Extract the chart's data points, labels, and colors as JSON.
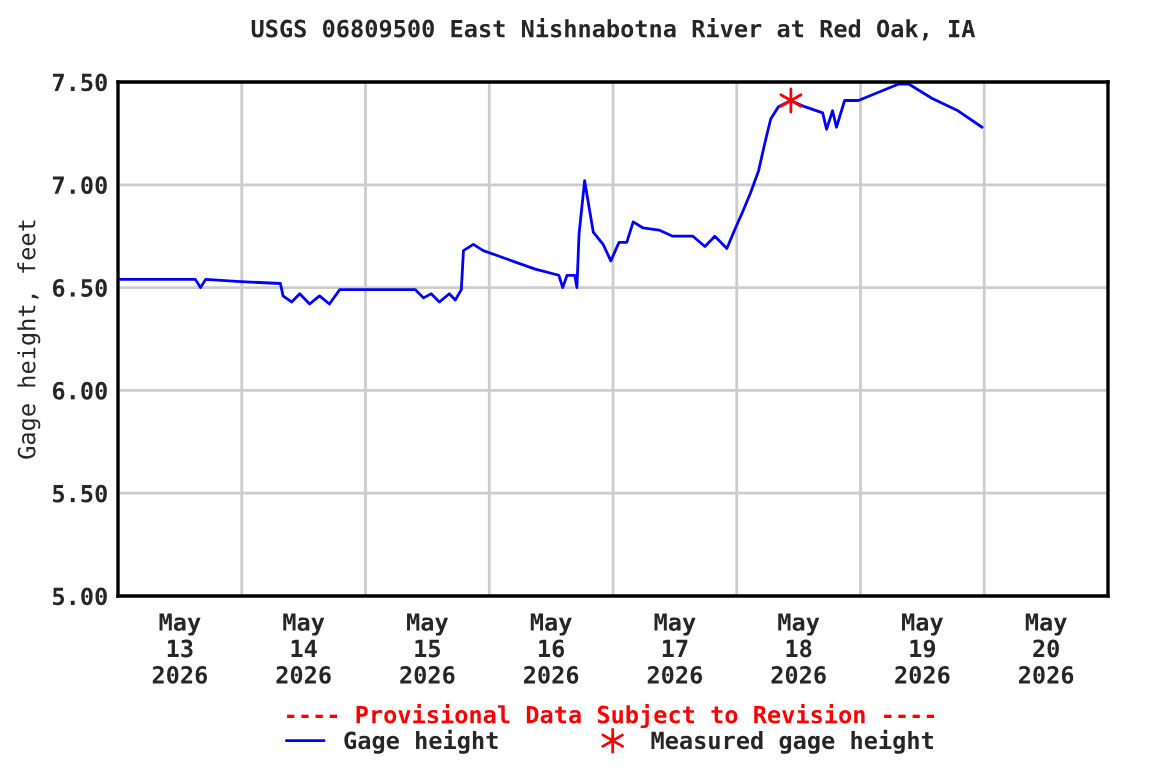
{
  "chart_data": {
    "type": "line",
    "title": "USGS 06809500 East Nishnabotna River at Red Oak, IA",
    "ylabel": "Gage height, feet",
    "xlim": [
      "2026-05-13T00:00",
      "2026-05-21T00:00"
    ],
    "xticks": [
      {
        "value": "2026-05-13T00:00",
        "label": null
      },
      {
        "value": "2026-05-13T12:00",
        "label": "May\n13\n2026"
      },
      {
        "value": "2026-05-14T00:00",
        "label": null
      },
      {
        "value": "2026-05-14T12:00",
        "label": "May\n14\n2026"
      },
      {
        "value": "2026-05-15T00:00",
        "label": null
      },
      {
        "value": "2026-05-15T12:00",
        "label": "May\n15\n2026"
      },
      {
        "value": "2026-05-16T00:00",
        "label": null
      },
      {
        "value": "2026-05-16T12:00",
        "label": "May\n16\n2026"
      },
      {
        "value": "2026-05-17T00:00",
        "label": null
      },
      {
        "value": "2026-05-17T12:00",
        "label": "May\n17\n2026"
      },
      {
        "value": "2026-05-18T00:00",
        "label": null
      },
      {
        "value": "2026-05-18T12:00",
        "label": "May\n18\n2026"
      },
      {
        "value": "2026-05-19T00:00",
        "label": null
      },
      {
        "value": "2026-05-19T12:00",
        "label": "May\n19\n2026"
      },
      {
        "value": "2026-05-20T00:00",
        "label": null
      },
      {
        "value": "2026-05-20T12:00",
        "label": "May\n20\n2026"
      },
      {
        "value": "2026-05-21T00:00",
        "label": null
      }
    ],
    "ylim": [
      5.0,
      7.5
    ],
    "yticks": [
      {
        "value": 5.0,
        "label": "5.00"
      },
      {
        "value": 5.5,
        "label": "5.50"
      },
      {
        "value": 6.0,
        "label": "6.00"
      },
      {
        "value": 6.5,
        "label": "6.50"
      },
      {
        "value": 7.0,
        "label": "7.00"
      },
      {
        "value": 7.5,
        "label": "7.50"
      }
    ],
    "grid": true,
    "legend": "bottom",
    "annotations": [
      "---- Provisional Data Subject to Revision ----"
    ],
    "series": [
      {
        "name": "Gage height",
        "color": "#0000ff",
        "marker": "none",
        "line_style": "solid",
        "x": [
          "2026-05-13T00:00",
          "2026-05-13T15:00",
          "2026-05-13T16:00",
          "2026-05-13T17:00",
          "2026-05-13T23:00",
          "2026-05-14T07:30",
          "2026-05-14T08:00",
          "2026-05-14T09:40",
          "2026-05-14T11:15",
          "2026-05-14T13:10",
          "2026-05-14T15:05",
          "2026-05-14T17:00",
          "2026-05-14T19:00",
          "2026-05-15T09:40",
          "2026-05-15T11:15",
          "2026-05-15T12:45",
          "2026-05-15T14:20",
          "2026-05-15T16:15",
          "2026-05-15T17:25",
          "2026-05-15T18:35",
          "2026-05-15T19:00",
          "2026-05-15T20:55",
          "2026-05-15T22:50",
          "2026-05-16T08:55",
          "2026-05-16T13:30",
          "2026-05-16T14:15",
          "2026-05-16T15:05",
          "2026-05-16T16:35",
          "2026-05-16T17:00",
          "2026-05-16T17:25",
          "2026-05-16T18:30",
          "2026-05-16T20:10",
          "2026-05-16T22:05",
          "2026-05-16T23:35",
          "2026-05-17T01:10",
          "2026-05-17T02:40",
          "2026-05-17T03:55",
          "2026-05-17T05:50",
          "2026-05-17T08:55",
          "2026-05-17T11:35",
          "2026-05-17T15:30",
          "2026-05-17T17:50",
          "2026-05-17T19:45",
          "2026-05-17T22:05",
          "2026-05-17T23:35",
          "2026-05-18T01:10",
          "2026-05-18T02:40",
          "2026-05-18T04:15",
          "2026-05-18T05:25",
          "2026-05-18T06:35",
          "2026-05-18T08:05",
          "2026-05-18T10:30",
          "2026-05-18T13:10",
          "2026-05-18T16:40",
          "2026-05-18T17:25",
          "2026-05-18T18:35",
          "2026-05-18T19:20",
          "2026-05-18T20:55",
          "2026-05-18T23:35",
          "2026-05-19T03:30",
          "2026-05-19T07:25",
          "2026-05-19T09:20",
          "2026-05-19T13:55",
          "2026-05-19T18:55",
          "2026-05-19T23:35"
        ],
        "values": [
          6.54,
          6.54,
          6.5,
          6.54,
          6.53,
          6.52,
          6.46,
          6.43,
          6.47,
          6.42,
          6.46,
          6.42,
          6.49,
          6.49,
          6.45,
          6.47,
          6.43,
          6.47,
          6.44,
          6.49,
          6.68,
          6.71,
          6.68,
          6.59,
          6.56,
          6.5,
          6.56,
          6.56,
          6.5,
          6.76,
          7.02,
          6.77,
          6.71,
          6.63,
          6.72,
          6.72,
          6.82,
          6.79,
          6.78,
          6.75,
          6.75,
          6.7,
          6.75,
          6.69,
          6.78,
          6.87,
          6.96,
          7.07,
          7.2,
          7.32,
          7.38,
          7.41,
          7.38,
          7.35,
          7.27,
          7.36,
          7.28,
          7.41,
          7.41,
          7.45,
          7.49,
          7.49,
          7.42,
          7.36,
          7.28
        ]
      },
      {
        "name": "Measured gage height",
        "type": "scatter",
        "color": "#ff0000",
        "marker": "cross",
        "x": [
          "2026-05-18T10:30"
        ],
        "values": [
          7.41
        ]
      }
    ]
  }
}
